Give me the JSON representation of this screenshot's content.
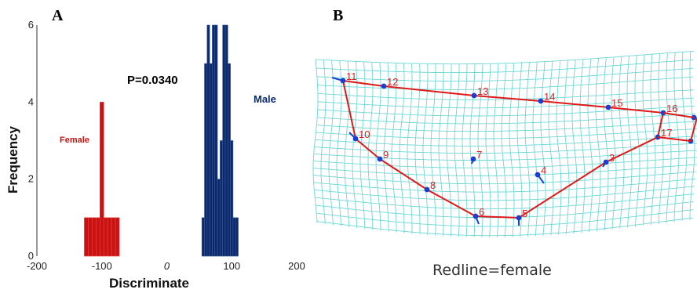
{
  "panel_a_letter": "A",
  "panel_b_letter": "B",
  "chart_data": {
    "type": "bar",
    "xlabel": "Discriminate",
    "ylabel": "Frequency",
    "xlim": [
      -200,
      200
    ],
    "ylim": [
      0,
      6
    ],
    "x_ticks": [
      -200,
      -100,
      0,
      100,
      200
    ],
    "y_ticks": [
      0,
      2,
      4,
      6
    ],
    "annotation": "P=0.0340",
    "series": [
      {
        "name": "Female",
        "color": "#cc1111",
        "x": [
          -124,
          -118,
          -112,
          -106,
          -100,
          -94,
          -88,
          -82,
          -76
        ],
        "values": [
          1,
          1,
          1,
          1,
          4,
          1,
          1,
          1,
          1
        ]
      },
      {
        "name": "Male",
        "color": "#0c2a6b",
        "x": [
          56,
          60,
          64,
          68,
          72,
          76,
          80,
          84,
          88,
          92,
          96,
          100,
          104,
          108
        ],
        "values": [
          1,
          5,
          6,
          5,
          6,
          6,
          2,
          3,
          6,
          6,
          5,
          3,
          1,
          1
        ]
      }
    ]
  },
  "landmarks": {
    "female_outline_order": [
      11,
      12,
      13,
      14,
      15,
      16,
      17,
      3,
      5,
      6,
      8,
      9,
      10,
      11
    ],
    "labels": [
      "3",
      "4",
      "5",
      "6",
      "7",
      "8",
      "9",
      "10",
      "11",
      "12",
      "13",
      "14",
      "15",
      "16",
      "17"
    ]
  },
  "caption": "Redline=female",
  "colors": {
    "female": "#cc1111",
    "male": "#0c2a6b",
    "grid": "#6fd6d6",
    "outline": "#e01818",
    "landmark": "#1a3fd0",
    "landmark_label": "#e02020"
  }
}
